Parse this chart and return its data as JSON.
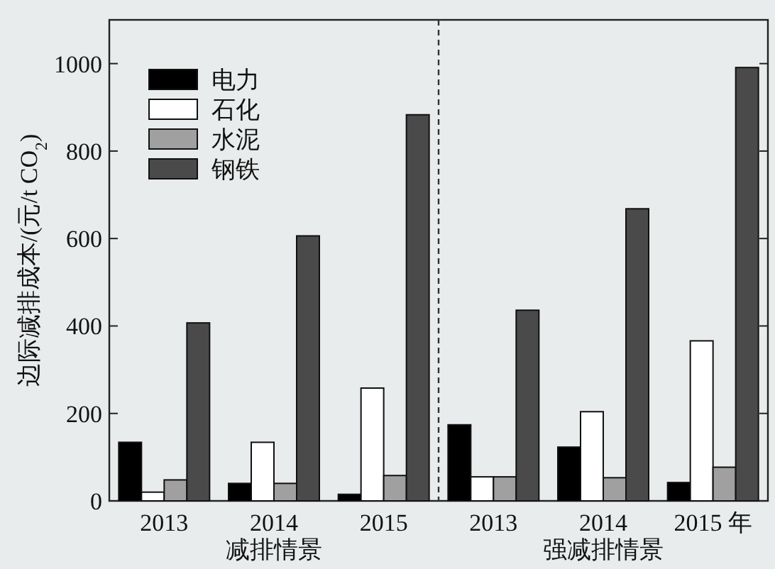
{
  "chart_data": {
    "type": "bar",
    "ylabel": "边际减排成本/(元/t CO$_{2}$)",
    "categories": [
      "2013",
      "2014",
      "2015",
      "2013",
      "2014",
      "2015 年"
    ],
    "series": [
      {
        "name": "电力",
        "color": "#000000",
        "values": [
          134,
          40,
          15,
          174,
          123,
          42
        ]
      },
      {
        "name": "石化",
        "color": "#ffffff",
        "values": [
          20,
          134,
          258,
          55,
          204,
          366
        ]
      },
      {
        "name": "水泥",
        "color": "#a0a0a0",
        "values": [
          48,
          40,
          58,
          55,
          53,
          77
        ]
      },
      {
        "name": "钢铁",
        "color": "#4a4a4a",
        "values": [
          407,
          606,
          883,
          436,
          668,
          991
        ]
      }
    ],
    "ylim": [
      0,
      1100
    ],
    "yticks": [
      0,
      200,
      400,
      600,
      800,
      1000
    ],
    "annotations": [
      "减排情景",
      "强减排情景"
    ],
    "legend": "top left"
  }
}
